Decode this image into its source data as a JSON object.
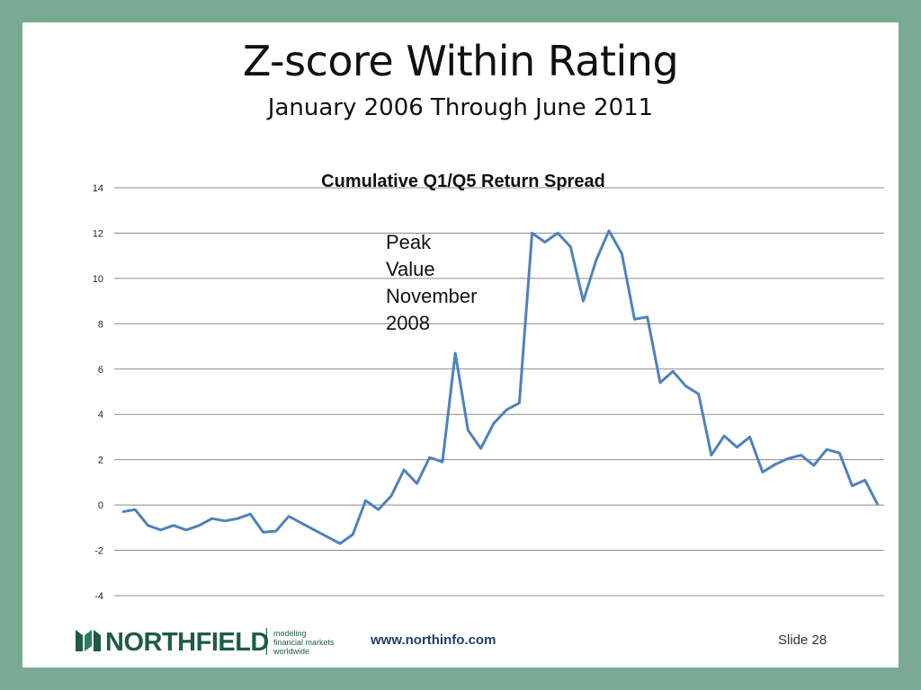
{
  "slide": {
    "title": "Z-score Within Rating",
    "subtitle": "January 2006 Through June 2011",
    "annotation": [
      "Peak",
      "Value",
      "November",
      "2008"
    ],
    "footer_url": "www.northinfo.com",
    "slide_number": "Slide 28",
    "logo": {
      "name": "NORTHFIELD",
      "tagline": [
        "modeling",
        "financial markets",
        "worldwide"
      ]
    },
    "colors": {
      "background": "#7aaa93",
      "line": "#4f81bd",
      "brand": "#1f5b45"
    }
  },
  "chart_data": {
    "type": "line",
    "title": "Cumulative  Q1/Q5 Return Spread",
    "xlabel": "",
    "ylabel": "",
    "ylim": [
      -4,
      14
    ],
    "yticks": [
      14,
      12,
      10,
      8,
      6,
      4,
      2,
      0,
      -2,
      -4
    ],
    "grid": true,
    "legend": "none",
    "series": [
      {
        "values": [
          -0.3,
          -0.2,
          -0.9,
          -1.1,
          -0.9,
          -1.1,
          -0.9,
          -0.6,
          -0.7,
          -0.6,
          -0.4,
          -1.2,
          -1.15,
          -0.5,
          -0.8,
          -1.1,
          -1.4,
          -1.7,
          -1.3,
          0.2,
          -0.2,
          0.4,
          1.55,
          0.95,
          2.1,
          1.9,
          6.7,
          3.3,
          2.5,
          3.6,
          4.2,
          4.5,
          12.0,
          11.6,
          12.0,
          11.4,
          9.0,
          10.8,
          12.1,
          11.1,
          8.2,
          8.3,
          5.4,
          5.9,
          5.25,
          4.9,
          2.2,
          3.05,
          2.55,
          3.0,
          1.45,
          1.8,
          2.05,
          2.2,
          1.75,
          2.45,
          2.3,
          0.85,
          1.1,
          0.0
        ]
      }
    ]
  }
}
